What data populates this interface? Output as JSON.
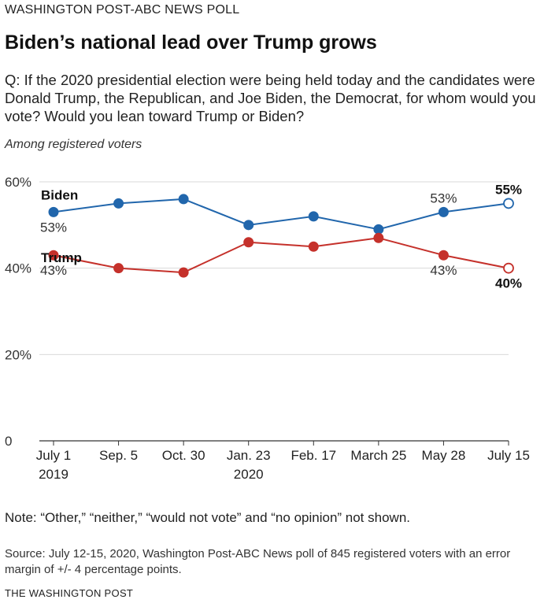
{
  "header": {
    "kicker": "WASHINGTON POST-ABC NEWS POLL",
    "title": "Biden’s national lead over Trump grows",
    "question": "Q: If the 2020 presidential election were being held today and the candidates were Donald Trump, the Republican, and Joe Biden, the Democrat, for whom would you vote?  Would you lean toward Trump or Biden?",
    "subtitle": "Among registered voters"
  },
  "footer": {
    "note": "Note: “Other,” “neither,” “would not vote” and “no opinion” not shown.",
    "source": "Source: July 12-15, 2020, Washington Post-ABC News poll of 845 registered voters with an error margin of +/- 4 percentage points.",
    "credit": "THE WASHINGTON POST"
  },
  "chart_data": {
    "type": "line",
    "categories": [
      [
        "July 1",
        "2019"
      ],
      [
        "Sep. 5",
        ""
      ],
      [
        "Oct. 30",
        ""
      ],
      [
        "Jan. 23",
        "2020"
      ],
      [
        "Feb. 17",
        ""
      ],
      [
        "March 25",
        ""
      ],
      [
        "May 28",
        ""
      ],
      [
        "July 15",
        ""
      ]
    ],
    "ylim": [
      0,
      60
    ],
    "yticks": [
      0,
      20,
      40,
      60
    ],
    "ytick_labels": [
      "0",
      "20%",
      "40%",
      "60%"
    ],
    "grid": true,
    "series": [
      {
        "name": "Biden",
        "color": "#2166ac",
        "values": [
          53,
          55,
          56,
          50,
          52,
          49,
          53,
          55
        ],
        "labeled_points": [
          {
            "index": 0,
            "label": "53%",
            "bold": false,
            "position": "below"
          },
          {
            "index": 6,
            "label": "53%",
            "bold": false,
            "position": "above"
          },
          {
            "index": 7,
            "label": "55%",
            "bold": true,
            "position": "above"
          }
        ]
      },
      {
        "name": "Trump",
        "color": "#c5312b",
        "values": [
          43,
          40,
          39,
          46,
          45,
          47,
          43,
          40
        ],
        "labeled_points": [
          {
            "index": 0,
            "label": "43%",
            "bold": false,
            "position": "below"
          },
          {
            "index": 6,
            "label": "43%",
            "bold": false,
            "position": "below"
          },
          {
            "index": 7,
            "label": "40%",
            "bold": true,
            "position": "below"
          }
        ]
      }
    ]
  }
}
